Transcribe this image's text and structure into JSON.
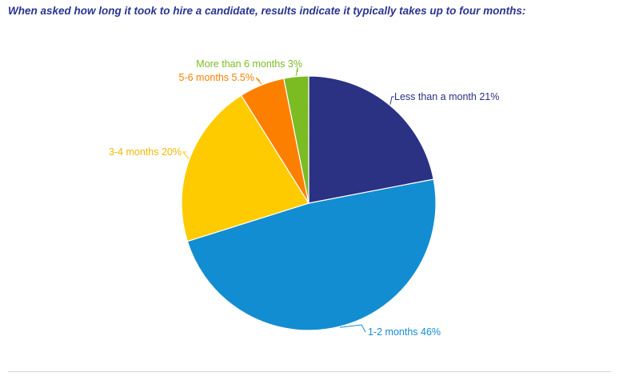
{
  "chart_data": {
    "type": "pie",
    "title": "When asked how long it took to hire a candidate, results indicate it typically takes up to four months:",
    "slices": [
      {
        "label": "Less than a month",
        "value": 21,
        "value_text": "21%",
        "color": "#2b3183"
      },
      {
        "label": "1-2 months",
        "value": 46,
        "value_text": "46%",
        "color": "#138dd1"
      },
      {
        "label": "3-4 months",
        "value": 20,
        "value_text": "20%",
        "color": "#fecb01"
      },
      {
        "label": "5-6 months",
        "value": 5.5,
        "value_text": "5.5%",
        "color": "#fd7f00"
      },
      {
        "label": "More than 6 months",
        "value": 3,
        "value_text": "3%",
        "color": "#7bbc23"
      }
    ],
    "start": "12 o'clock",
    "direction": "clockwise",
    "legend": "none",
    "data_labels": "outside with leader lines"
  }
}
